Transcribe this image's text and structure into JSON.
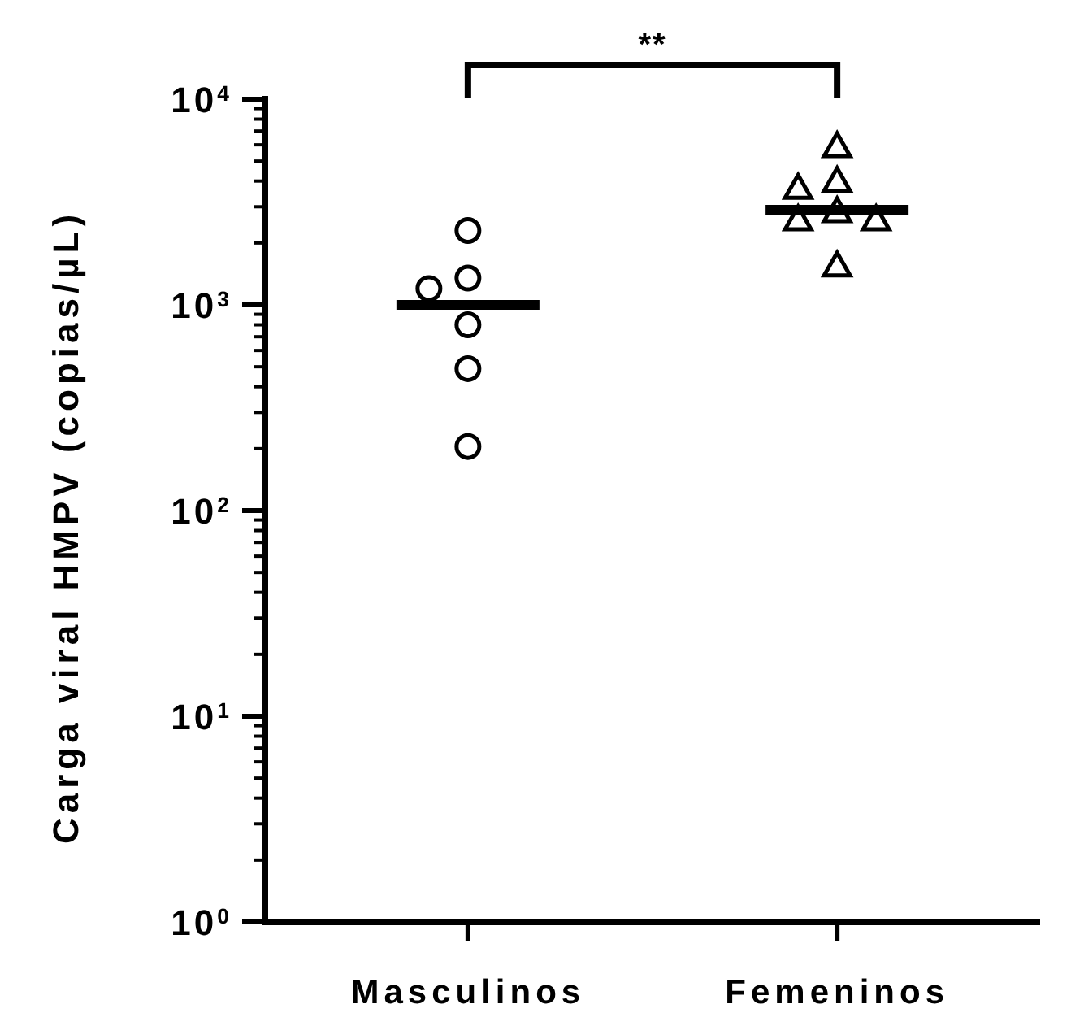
{
  "chart_data": {
    "type": "scatter",
    "ylabel": "Carga viral HMPV (copias/µL)",
    "categories": [
      "Masculinos",
      "Femeninos"
    ],
    "log": "y",
    "ylim": [
      1,
      10000
    ],
    "yticks": [
      {
        "value": 1,
        "label": "10$^{0}$"
      },
      {
        "value": 2,
        "label": null
      },
      {
        "value": 3,
        "label": null
      },
      {
        "value": 4,
        "label": null
      },
      {
        "value": 5,
        "label": null
      },
      {
        "value": 6,
        "label": null
      },
      {
        "value": 7,
        "label": null
      },
      {
        "value": 8,
        "label": null
      },
      {
        "value": 9,
        "label": null
      },
      {
        "value": 10,
        "label": "10$^{1}$"
      },
      {
        "value": 20,
        "label": null
      },
      {
        "value": 30,
        "label": null
      },
      {
        "value": 40,
        "label": null
      },
      {
        "value": 50,
        "label": null
      },
      {
        "value": 60,
        "label": null
      },
      {
        "value": 70,
        "label": null
      },
      {
        "value": 80,
        "label": null
      },
      {
        "value": 90,
        "label": null
      },
      {
        "value": 100,
        "label": "10$^{2}$"
      },
      {
        "value": 200,
        "label": null
      },
      {
        "value": 300,
        "label": null
      },
      {
        "value": 400,
        "label": null
      },
      {
        "value": 500,
        "label": null
      },
      {
        "value": 600,
        "label": null
      },
      {
        "value": 700,
        "label": null
      },
      {
        "value": 800,
        "label": null
      },
      {
        "value": 900,
        "label": null
      },
      {
        "value": 1000,
        "label": "10$^{3}$"
      },
      {
        "value": 2000,
        "label": null
      },
      {
        "value": 3000,
        "label": null
      },
      {
        "value": 4000,
        "label": null
      },
      {
        "value": 5000,
        "label": null
      },
      {
        "value": 6000,
        "label": null
      },
      {
        "value": 7000,
        "label": null
      },
      {
        "value": 8000,
        "label": null
      },
      {
        "value": 9000,
        "label": null
      },
      {
        "value": 10000,
        "label": "10$^{4}$"
      }
    ],
    "grid": false,
    "series": [
      {
        "marker": "circle",
        "color": "#000000",
        "x": [
          "Masculinos",
          "Masculinos",
          "Masculinos",
          "Masculinos",
          "Masculinos",
          "Masculinos"
        ],
        "values": [
          2300,
          1350,
          1200,
          800,
          490,
          205
        ]
      },
      {
        "marker": "triangle",
        "color": "#000000",
        "x": [
          "Femeninos",
          "Femeninos",
          "Femeninos",
          "Femeninos",
          "Femeninos",
          "Femeninos",
          "Femeninos"
        ],
        "values": [
          5900,
          4000,
          3700,
          2850,
          2600,
          2600,
          1550
        ]
      },
      {
        "type": "box",
        "color": "#000000",
        "boxes": [
          {
            "low": 1000,
            "q1": 1000,
            "median": 1000,
            "q3": 1000,
            "high": 1000
          },
          {
            "low": 2900,
            "q1": 2900,
            "median": 2900,
            "q3": 2900,
            "high": 2900
          }
        ]
      }
    ],
    "annotations": [
      "**"
    ]
  }
}
